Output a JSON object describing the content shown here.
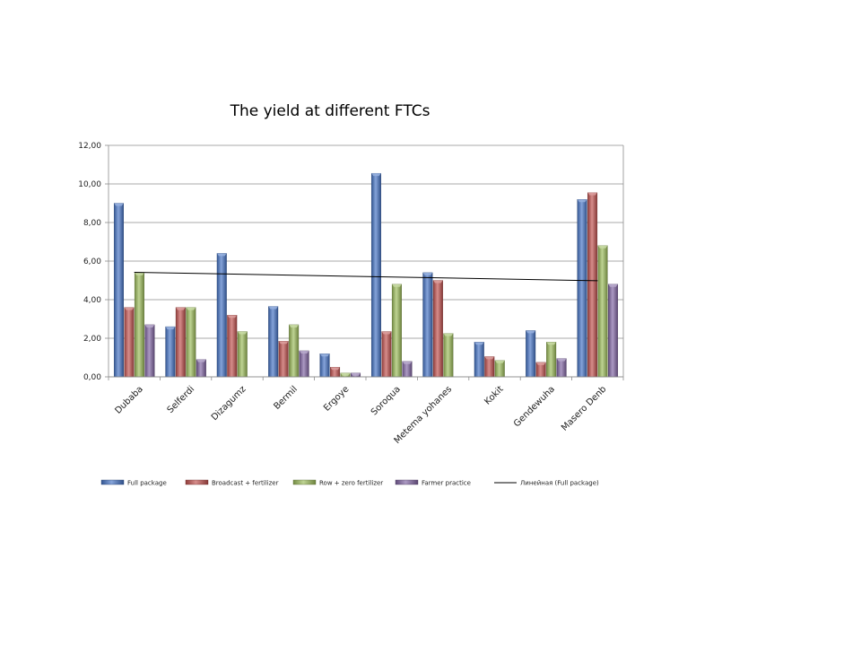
{
  "chart_data": {
    "type": "bar",
    "title": "The yield at different FTCs",
    "categories": [
      "Dubaba",
      "Selferdi",
      "Dizagumz",
      "Bermil",
      "Ergoye",
      "Soroqua",
      "Metema yohanes",
      "Kokit",
      "Gendewuha",
      "Masero Denb"
    ],
    "series": [
      {
        "name": "Full package",
        "color": "#4472C4",
        "values": [
          9.0,
          2.6,
          6.4,
          3.65,
          1.2,
          10.55,
          5.4,
          1.8,
          2.4,
          9.2
        ]
      },
      {
        "name": "Broadcast + fertilizer",
        "color": "#C0504D",
        "values": [
          3.6,
          3.6,
          3.2,
          1.85,
          0.5,
          2.35,
          5.0,
          1.05,
          0.75,
          9.55
        ]
      },
      {
        "name": "Row + zero fertilizer",
        "color": "#9BBB59",
        "values": [
          5.4,
          3.6,
          2.35,
          2.7,
          0.2,
          4.8,
          2.25,
          0.85,
          1.8,
          6.8
        ]
      },
      {
        "name": "Farmer practice",
        "color": "#8064A2",
        "values": [
          2.7,
          0.9,
          null,
          1.35,
          0.2,
          0.8,
          null,
          null,
          0.95,
          4.8
        ]
      }
    ],
    "trendline": {
      "name": "Линейная (Full package)",
      "of_series": "Full package",
      "start": 5.42,
      "end": 4.98,
      "color": "#000000"
    },
    "y_ticks": [
      "0,00",
      "2,00",
      "4,00",
      "6,00",
      "8,00",
      "10,00",
      "12,00"
    ],
    "ylim": [
      0,
      12
    ],
    "grid": true,
    "legend_position": "bottom"
  }
}
